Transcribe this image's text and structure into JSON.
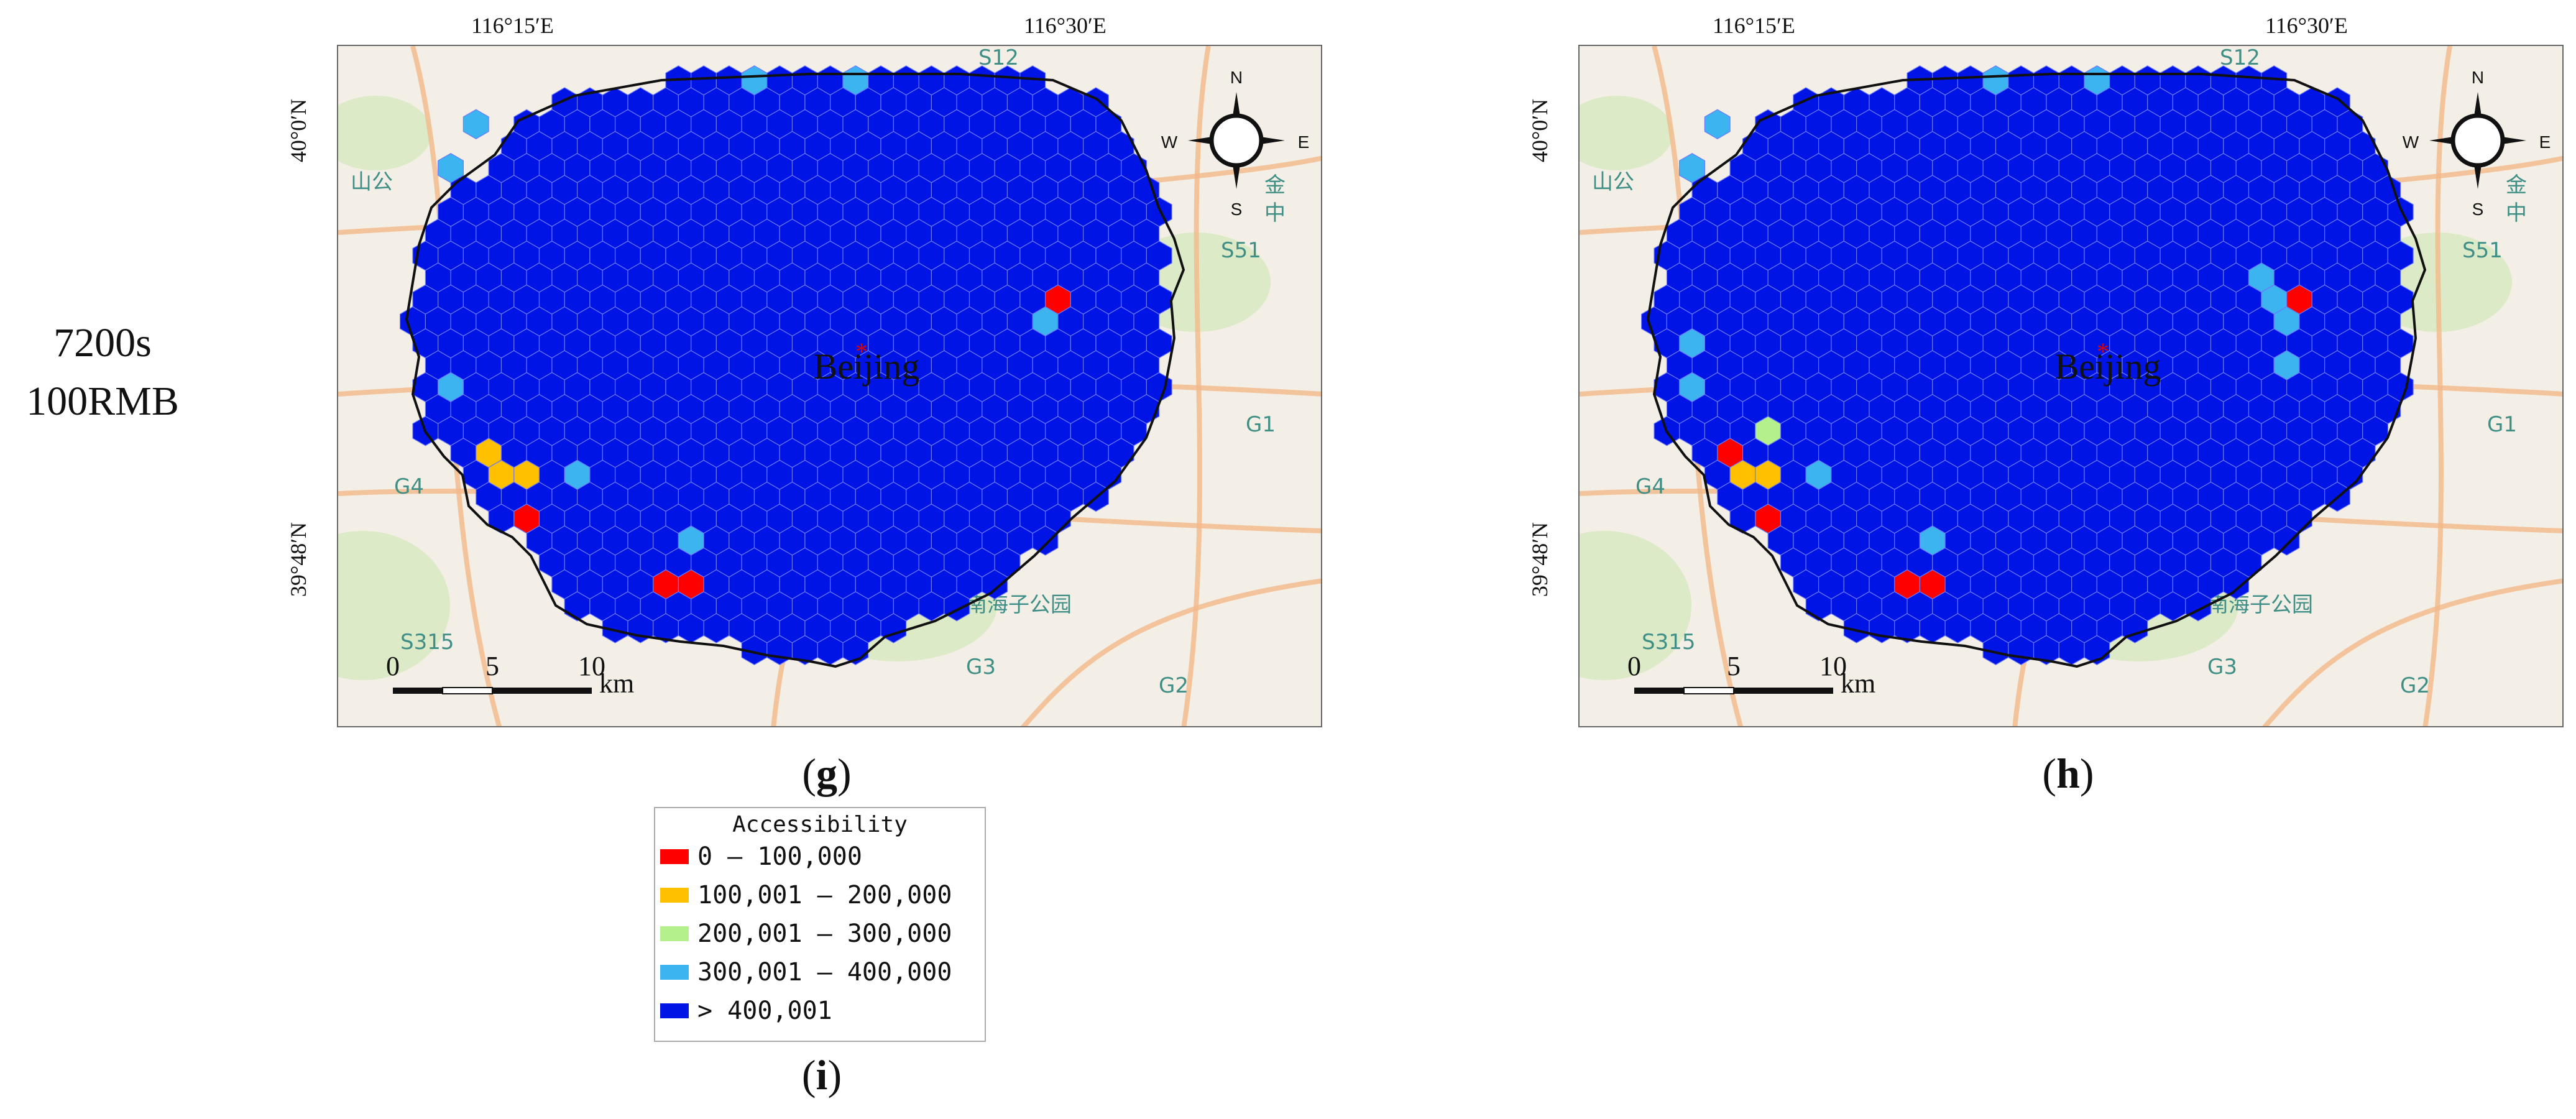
{
  "row_label": {
    "line1": "7200s",
    "line2": "100RMB"
  },
  "panels": [
    {
      "letter": "g",
      "axis": {
        "lon_ticks": [
          "116°15′E",
          "116°30′E"
        ],
        "lat_ticks": [
          "40°0′N",
          "39°48′N"
        ]
      },
      "city_label": "Beijing",
      "compass": {
        "n": "N",
        "s": "S",
        "e": "E",
        "w": "W"
      },
      "scale_bar": {
        "labels": [
          "0",
          "5",
          "10"
        ],
        "unit": "km"
      },
      "basemap_labels": [
        "S12",
        "S51",
        "G1",
        "G4",
        "G3",
        "G2",
        "S315",
        "南海子公园",
        "山公",
        "金",
        "中"
      ]
    },
    {
      "letter": "h",
      "axis": {
        "lon_ticks": [
          "116°15′E",
          "116°30′E"
        ],
        "lat_ticks": [
          "40°0′N",
          "39°48′N"
        ]
      },
      "city_label": "Beijing",
      "compass": {
        "n": "N",
        "s": "S",
        "e": "E",
        "w": "W"
      },
      "scale_bar": {
        "labels": [
          "0",
          "5",
          "10"
        ],
        "unit": "km"
      },
      "basemap_labels": [
        "S12",
        "S51",
        "G1",
        "G4",
        "G3",
        "G2",
        "S315",
        "南海子公园",
        "山公",
        "金",
        "中"
      ]
    }
  ],
  "legend": {
    "title": "Accessibility",
    "items": [
      {
        "label": "0 – 100,000",
        "color": "#ff0000"
      },
      {
        "label": "100,001 – 200,000",
        "color": "#ffc000"
      },
      {
        "label": "200,001 – 300,000",
        "color": "#b4f08c"
      },
      {
        "label": "300,001 – 400,000",
        "color": "#3cb4f0"
      },
      {
        "label": "> 400,001",
        "color": "#0014e6"
      }
    ],
    "letter": "i"
  },
  "colors": {
    "map_background": "#f3efe6",
    "road": "#f2b98a",
    "green": "#cfe6b4",
    "boundary": "#111111",
    "hex_outline": "#6b78ff"
  }
}
